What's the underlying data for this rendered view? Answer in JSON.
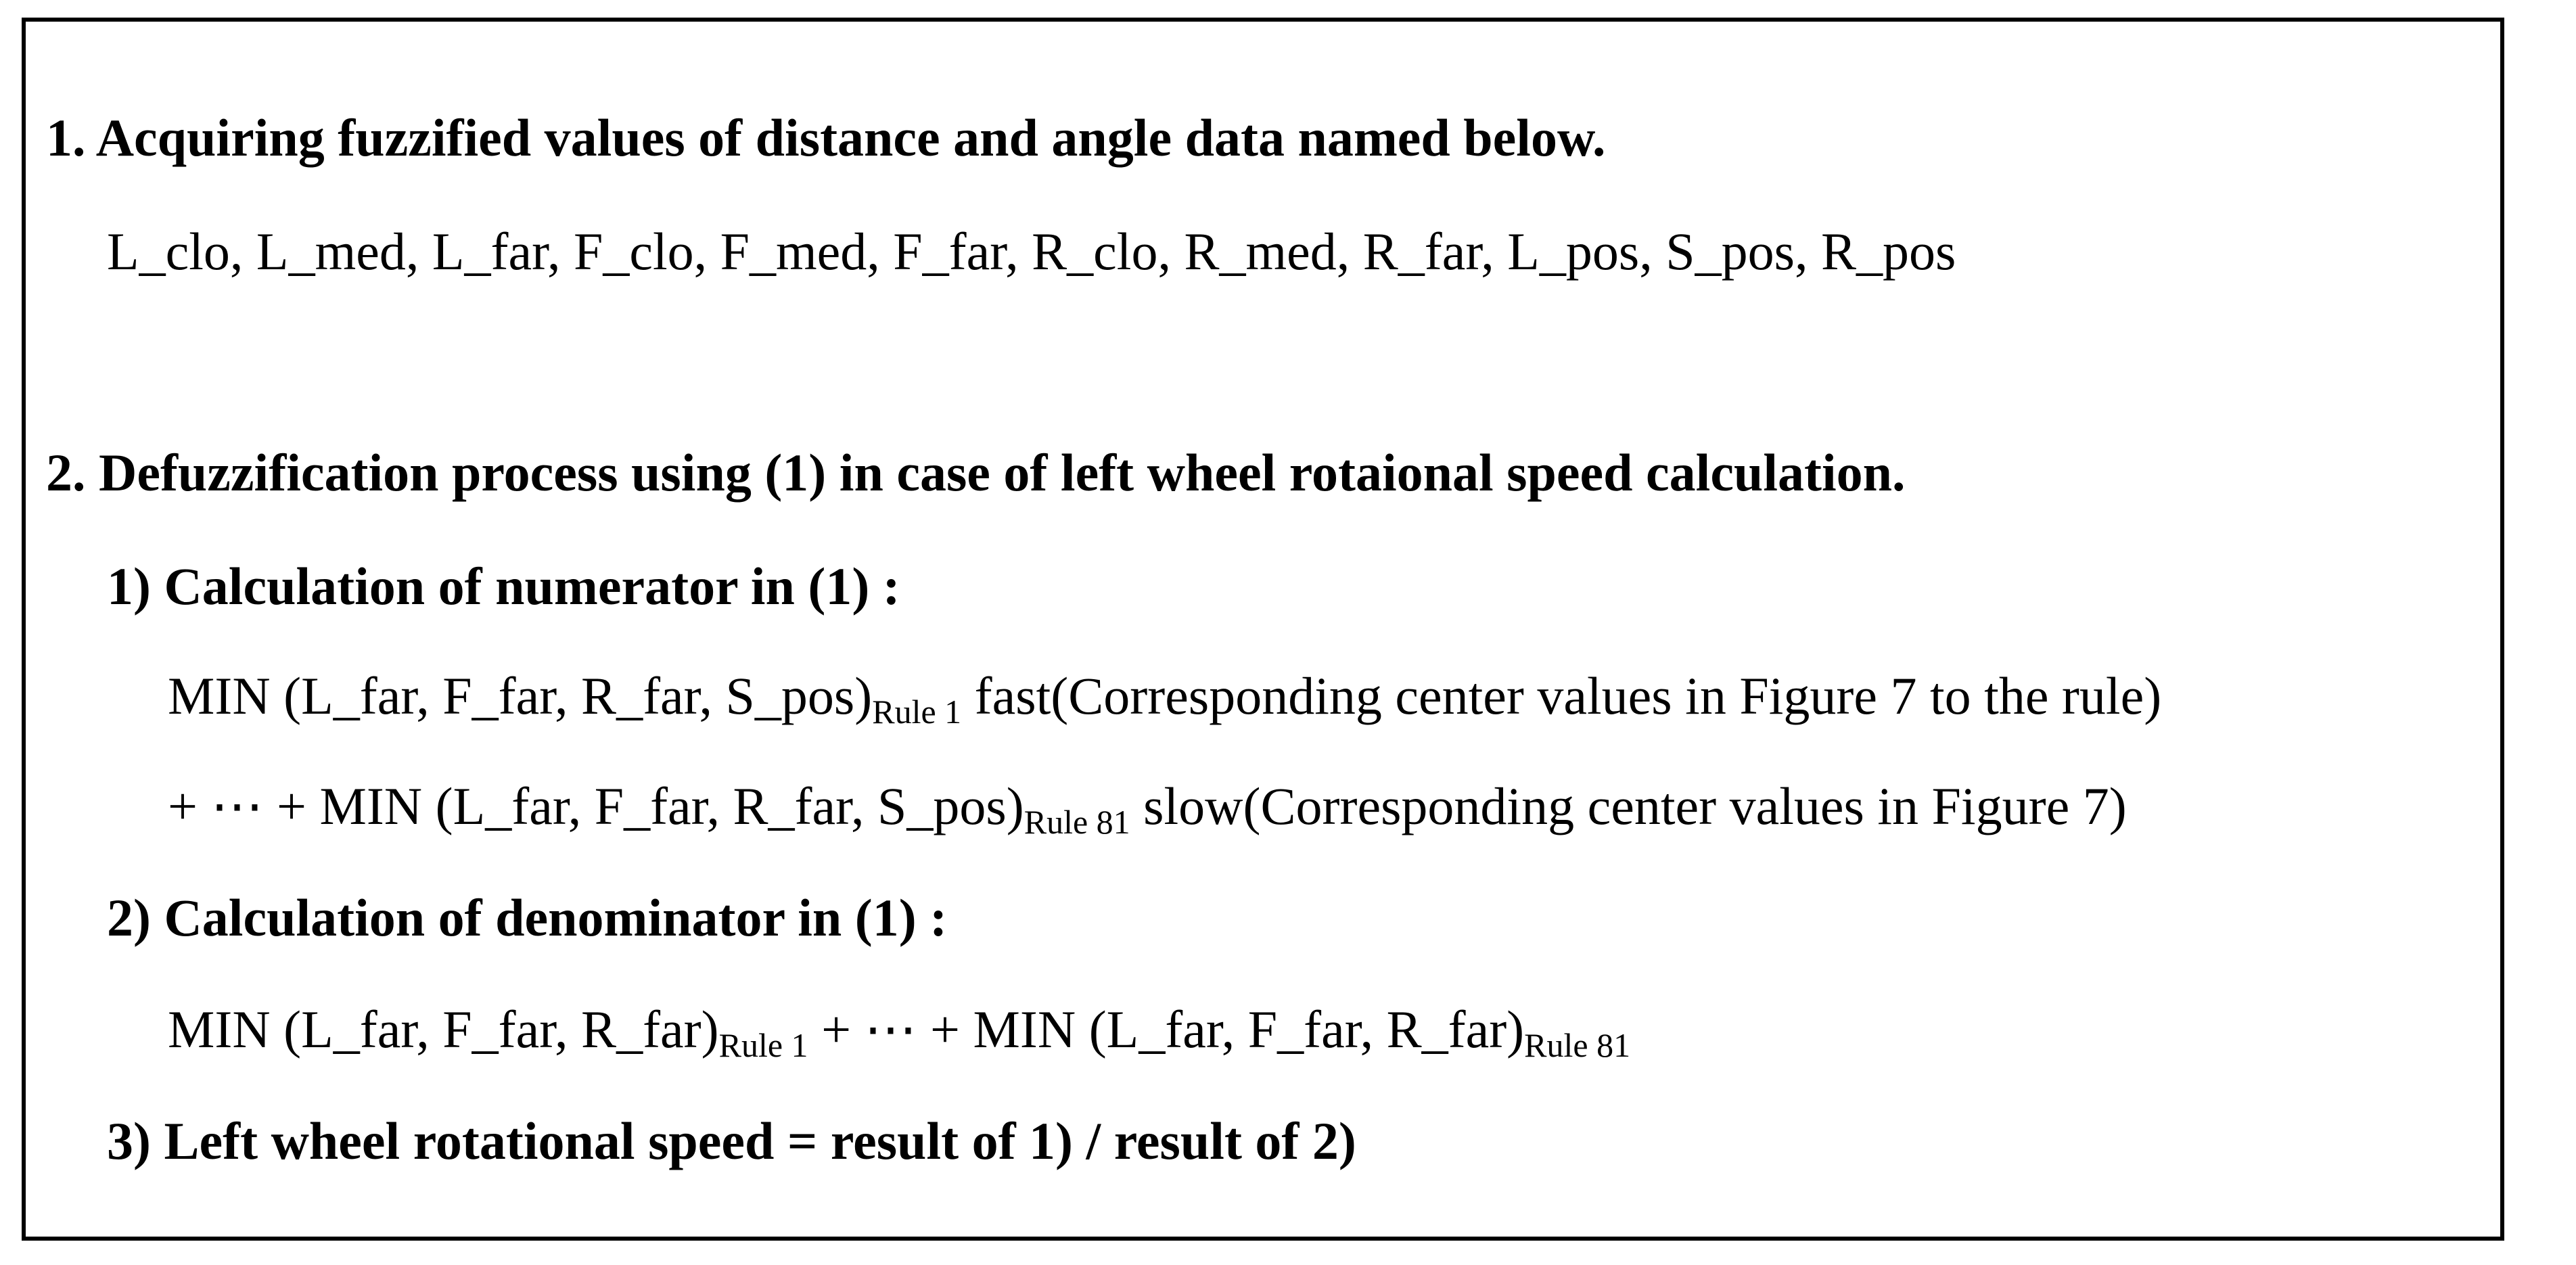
{
  "section1": {
    "heading": "1. Acquiring fuzzified values of distance and angle data named below.",
    "variables": "L_clo, L_med, L_far, F_clo, F_med, F_far, R_clo, R_med, R_far, L_pos, S_pos, R_pos"
  },
  "section2": {
    "heading": "2. Defuzzification process using (1) in case of left wheel rotaional  speed calculation.",
    "step1": {
      "heading": "1) Calculation of numerator in (1) :",
      "line1": {
        "expr": "MIN (L_far, F_far, R_far, S_pos)",
        "sub": "Rule 1",
        "tail": " fast(Corresponding center values in Figure 7 to  the rule)"
      },
      "line2": {
        "expr": "+ ⋯ + MIN (L_far, F_far, R_far, S_pos)",
        "sub": "Rule 81",
        "tail": " slow(Corresponding center values in Figure 7)"
      }
    },
    "step2": {
      "heading": "2) Calculation of denominator in (1) :",
      "line1": {
        "expr_a": "MIN (L_far, F_far, R_far)",
        "sub_a": "Rule 1",
        "expr_b": " + ⋯ + MIN (L_far, F_far, R_far)",
        "sub_b": "Rule 81"
      }
    },
    "step3": {
      "heading": "3) Left wheel rotational speed = result of 1) / result of 2)"
    }
  }
}
